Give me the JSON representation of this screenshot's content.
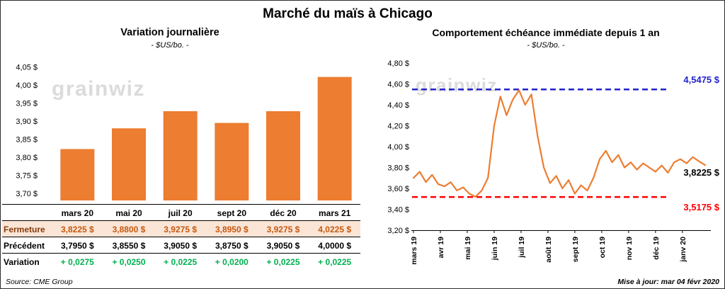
{
  "page": {
    "title": "Marché du maïs à Chicago",
    "watermark": "grainwiz",
    "source": "Source: CME Group",
    "updated": "Mise à jour: mar 04 févr 2020"
  },
  "colors": {
    "accent_orange": "#ED7D31",
    "high_blue": "#2222CC",
    "low_red": "#FF0000",
    "variation_green": "#00B050",
    "fermeture_bg": "#FBE5D6",
    "fermeture_label": "#843C0C",
    "fermeture_value": "#C45911",
    "watermark_gray": "#DBDBDB"
  },
  "chart_data": [
    {
      "type": "bar",
      "title": "Variation journalière",
      "subtitle": "- $US/bo. -",
      "categories": [
        "mars 20",
        "mai 20",
        "juil 20",
        "sept 20",
        "déc 20",
        "mars 21"
      ],
      "values": [
        3.8225,
        3.88,
        3.9275,
        3.895,
        3.9275,
        4.0225
      ],
      "ylim": [
        3.68,
        4.065
      ],
      "yticks": [
        3.7,
        3.75,
        3.8,
        3.85,
        3.9,
        3.95,
        4.0,
        4.05
      ],
      "ytick_labels": [
        "3,70 $",
        "3,75 $",
        "3,80 $",
        "3,85 $",
        "3,90 $",
        "3,95 $",
        "4,00 $",
        "4,05 $"
      ],
      "grid": false,
      "legend": false
    },
    {
      "type": "line",
      "title": "Comportement échéance immédiate depuis 1 an",
      "subtitle": "- $US/bo. -",
      "x_tick_labels": [
        "mars 19",
        "avr 19",
        "mai 19",
        "juin 19",
        "juil 19",
        "août 19",
        "sept 19",
        "oct 19",
        "nov 19",
        "déc 19",
        "janv 20"
      ],
      "values": [
        3.7,
        3.76,
        3.66,
        3.73,
        3.64,
        3.62,
        3.66,
        3.58,
        3.61,
        3.55,
        3.52,
        3.58,
        3.7,
        4.2,
        4.48,
        4.3,
        4.45,
        4.54,
        4.4,
        4.5,
        4.1,
        3.8,
        3.65,
        3.72,
        3.6,
        3.68,
        3.55,
        3.63,
        3.58,
        3.7,
        3.88,
        3.96,
        3.85,
        3.92,
        3.8,
        3.85,
        3.78,
        3.84,
        3.8,
        3.76,
        3.82,
        3.75,
        3.85,
        3.88,
        3.84,
        3.9,
        3.86,
        3.8225
      ],
      "ylim": [
        3.2,
        4.8
      ],
      "yticks": [
        3.2,
        3.4,
        3.6,
        3.8,
        4.0,
        4.2,
        4.4,
        4.6,
        4.8
      ],
      "ytick_labels": [
        "3,20 $",
        "3,40 $",
        "3,60 $",
        "3,80 $",
        "4,00 $",
        "4,20 $",
        "4,40 $",
        "4,60 $",
        "4,80 $"
      ],
      "grid": false,
      "legend": false,
      "annotations": {
        "high": {
          "value": 4.5475,
          "label": "4,5475 $"
        },
        "low": {
          "value": 3.5175,
          "label": "3,5175 $"
        },
        "last": {
          "value": 3.8225,
          "label": "3,8225 $"
        }
      }
    }
  ],
  "table": {
    "rows": [
      {
        "name": "fermeture",
        "label": "Fermeture",
        "values": [
          "3,8225 $",
          "3,8800 $",
          "3,9275 $",
          "3,8950 $",
          "3,9275 $",
          "4,0225 $"
        ]
      },
      {
        "name": "precedent",
        "label": "Précédent",
        "values": [
          "3,7950 $",
          "3,8550 $",
          "3,9050 $",
          "3,8750 $",
          "3,9050 $",
          "4,0000 $"
        ]
      },
      {
        "name": "variation",
        "label": "Variation",
        "values": [
          "+ 0,0275",
          "+ 0,0250",
          "+ 0,0225",
          "+ 0,0200",
          "+ 0,0225",
          "+ 0,0225"
        ]
      }
    ]
  }
}
